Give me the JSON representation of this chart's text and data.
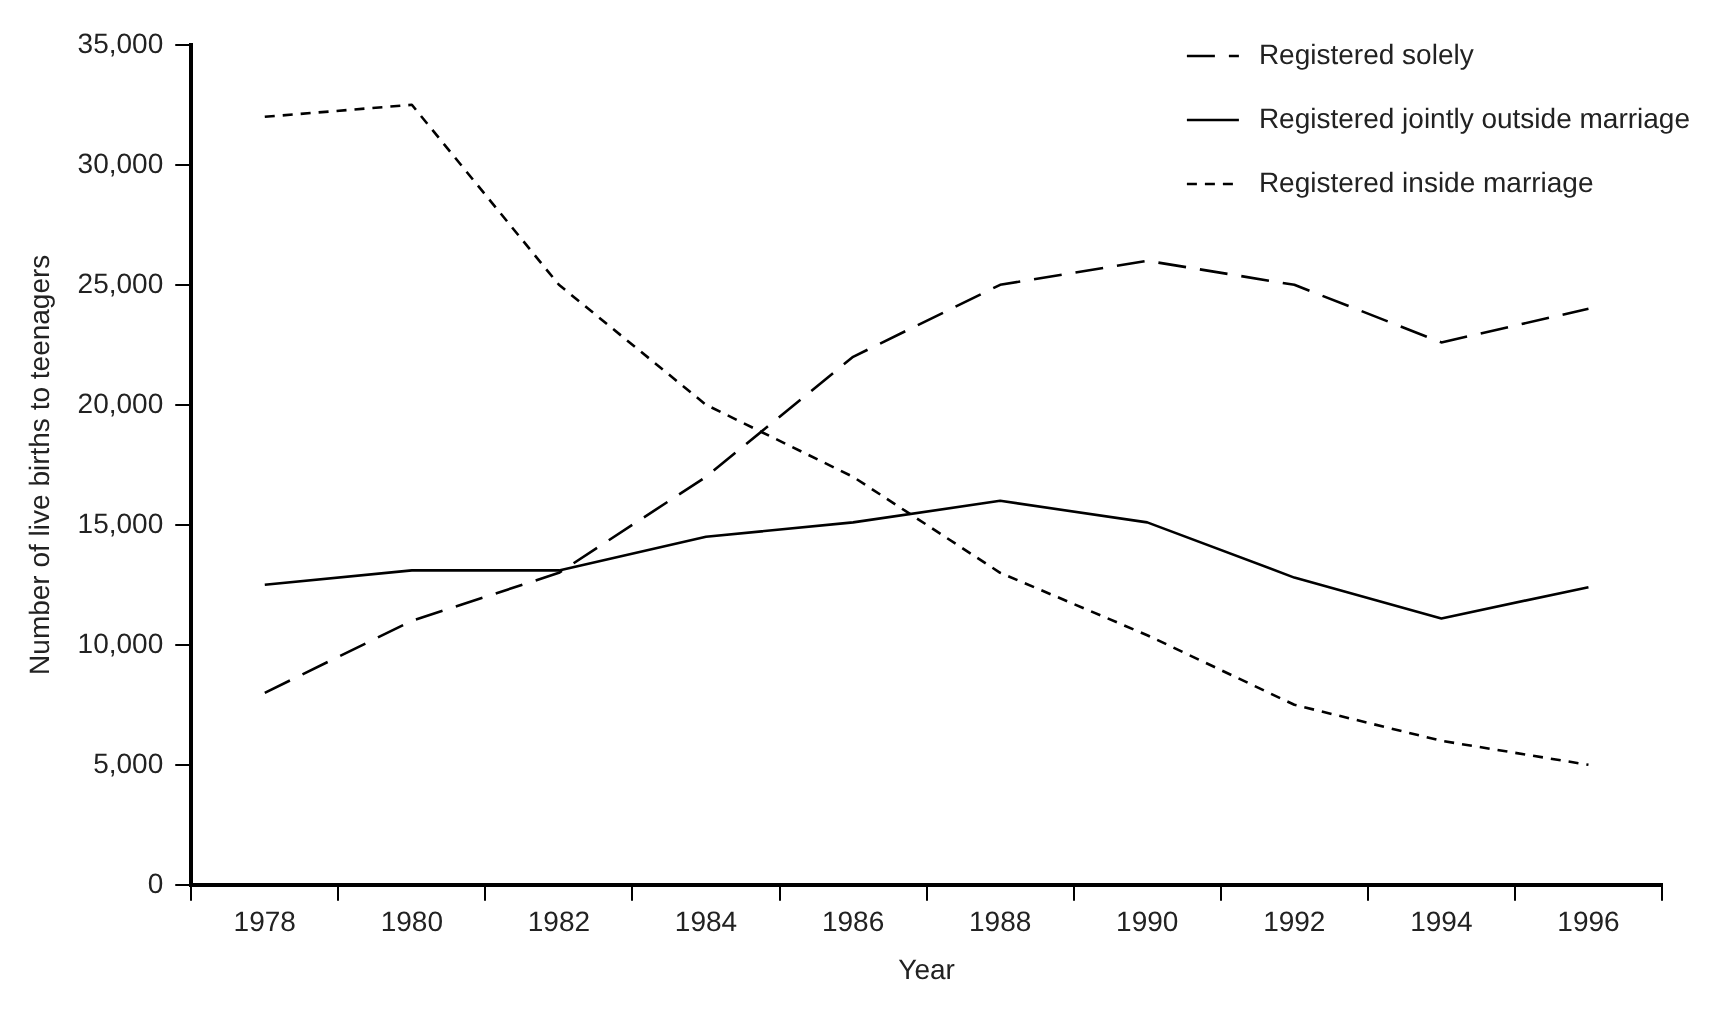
{
  "chart_data": {
    "type": "line",
    "xlabel": "Year",
    "ylabel": "Number of live births to teenagers",
    "categories": [
      "1978",
      "1980",
      "1982",
      "1984",
      "1986",
      "1988",
      "1990",
      "1992",
      "1994",
      "1996"
    ],
    "series": [
      {
        "name": "Registered solely",
        "color": "#000000",
        "line_style": "dashed",
        "values": [
          8000,
          11000,
          13000,
          17000,
          22000,
          25000,
          26000,
          25000,
          22600,
          24000
        ]
      },
      {
        "name": "Registered jointly outside marriage",
        "color": "#000000",
        "line_style": "solid",
        "values": [
          12500,
          13100,
          13100,
          14500,
          15100,
          16000,
          15100,
          12800,
          11100,
          12400
        ]
      },
      {
        "name": "Registered inside marriage",
        "color": "#000000",
        "line_style": "dotted",
        "values": [
          32000,
          32500,
          25000,
          20000,
          17000,
          13000,
          10400,
          7500,
          6000,
          5000
        ]
      }
    ],
    "ylim": [
      0,
      35000
    ],
    "yticks": [
      0,
      {
        "value": 5000,
        "label": "5,000"
      },
      {
        "value": 10000,
        "label": "10,000"
      },
      {
        "value": 15000,
        "label": "15,000"
      },
      {
        "value": 20000,
        "label": "20,000"
      },
      {
        "value": 25000,
        "label": "25,000"
      },
      {
        "value": 30000,
        "label": "30,000"
      },
      {
        "value": 35000,
        "label": "35,000"
      }
    ],
    "grid": false,
    "legend": "top right",
    "marker": "none"
  }
}
